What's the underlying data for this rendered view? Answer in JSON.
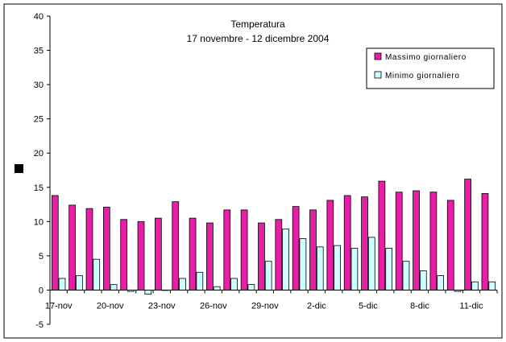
{
  "chart_data": {
    "type": "bar",
    "title": "Temperatura",
    "subtitle": "17 novembre - 12 dicembre 2004",
    "xlabel": "",
    "ylabel": "",
    "ylim": [
      -5,
      40
    ],
    "yticks": [
      "-5",
      "0",
      "5",
      "10",
      "15",
      "20",
      "25",
      "30",
      "35",
      "40"
    ],
    "categories": [
      "17-nov",
      "18-nov",
      "19-nov",
      "20-nov",
      "21-nov",
      "22-nov",
      "23-nov",
      "24-nov",
      "25-nov",
      "26-nov",
      "27-nov",
      "28-nov",
      "29-nov",
      "30-nov",
      "1-dic",
      "2-dic",
      "3-dic",
      "4-dic",
      "5-dic",
      "6-dic",
      "7-dic",
      "8-dic",
      "9-dic",
      "10-dic",
      "11-dic",
      "12-dic"
    ],
    "xtick_labels": [
      "17-nov",
      "20-nov",
      "23-nov",
      "26-nov",
      "29-nov",
      "2-dic",
      "5-dic",
      "8-dic",
      "11-dic"
    ],
    "xtick_positions": [
      0,
      3,
      6,
      9,
      12,
      15,
      18,
      21,
      24
    ],
    "series": [
      {
        "name": "Massimo giornaliero",
        "color": "#e81ea8",
        "values": [
          13.8,
          12.4,
          11.9,
          12.1,
          10.3,
          10.0,
          10.5,
          12.9,
          10.5,
          9.8,
          11.7,
          11.7,
          9.8,
          10.3,
          12.2,
          11.7,
          13.1,
          13.8,
          13.6,
          15.9,
          14.3,
          14.5,
          14.3,
          13.1,
          16.2,
          14.1
        ]
      },
      {
        "name": "Minimo giornaliero",
        "color": "#ccffff",
        "values": [
          1.7,
          2.1,
          4.5,
          0.8,
          -0.2,
          -0.6,
          0.0,
          1.7,
          2.6,
          0.5,
          1.7,
          0.8,
          4.2,
          8.9,
          7.5,
          6.3,
          6.5,
          6.1,
          7.7,
          6.1,
          4.2,
          2.8,
          2.1,
          -0.2,
          1.2,
          1.2
        ]
      }
    ],
    "legend_position": "top-right",
    "grid": false
  }
}
